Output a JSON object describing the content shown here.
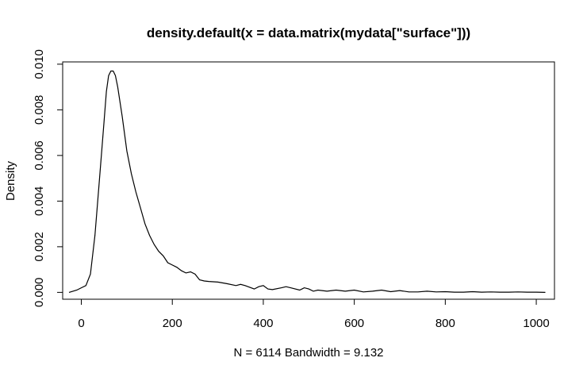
{
  "chart_data": {
    "type": "line",
    "title": "density.default(x = data.matrix(mydata[\"surface\"]))",
    "xlabel": "N = 6114   Bandwidth = 9.132",
    "ylabel": "Density",
    "xlim": [
      -41,
      1040
    ],
    "ylim": [
      -0.0003,
      0.0101
    ],
    "x_ticks": [
      0,
      200,
      400,
      600,
      800,
      1000
    ],
    "x_tick_labels": [
      "0",
      "200",
      "400",
      "600",
      "800",
      "1000"
    ],
    "y_ticks": [
      0.0,
      0.002,
      0.004,
      0.006,
      0.008,
      0.01
    ],
    "y_tick_labels": [
      "0.000",
      "0.002",
      "0.004",
      "0.006",
      "0.008",
      "0.010"
    ],
    "grid": false,
    "series": [
      {
        "color": "#000000",
        "x": [
          -27,
          -10,
          0,
          10,
          20,
          30,
          40,
          50,
          55,
          60,
          65,
          70,
          75,
          80,
          90,
          100,
          110,
          120,
          130,
          140,
          150,
          160,
          170,
          180,
          190,
          200,
          210,
          220,
          230,
          240,
          250,
          260,
          270,
          280,
          300,
          320,
          340,
          350,
          360,
          380,
          390,
          400,
          410,
          420,
          440,
          450,
          460,
          480,
          490,
          500,
          510,
          520,
          540,
          560,
          580,
          600,
          620,
          640,
          660,
          680,
          700,
          720,
          740,
          760,
          780,
          800,
          820,
          840,
          860,
          880,
          900,
          920,
          940,
          960,
          980,
          1000,
          1020
        ],
        "y": [
          0.0,
          0.0001,
          0.0002,
          0.0003,
          0.0008,
          0.0025,
          0.005,
          0.0075,
          0.0088,
          0.0095,
          0.0097,
          0.0097,
          0.0095,
          0.009,
          0.0077,
          0.0062,
          0.0052,
          0.0044,
          0.0037,
          0.003,
          0.0025,
          0.0021,
          0.0018,
          0.0016,
          0.0013,
          0.0012,
          0.0011,
          0.00095,
          0.00085,
          0.0009,
          0.0008,
          0.00055,
          0.0005,
          0.00048,
          0.00045,
          0.00038,
          0.0003,
          0.00035,
          0.0003,
          0.00015,
          0.00025,
          0.0003,
          0.00015,
          0.00012,
          0.0002,
          0.00025,
          0.0002,
          0.0001,
          0.0002,
          0.00015,
          5e-05,
          0.0001,
          5e-05,
          0.0001,
          5e-05,
          0.0001,
          2e-05,
          5e-05,
          0.0001,
          3e-05,
          8e-05,
          2e-05,
          2e-05,
          5e-05,
          2e-05,
          3e-05,
          1e-05,
          1e-05,
          3e-05,
          1e-05,
          2e-05,
          1e-05,
          1e-05,
          2e-05,
          1e-05,
          1e-05,
          0.0
        ]
      }
    ]
  }
}
